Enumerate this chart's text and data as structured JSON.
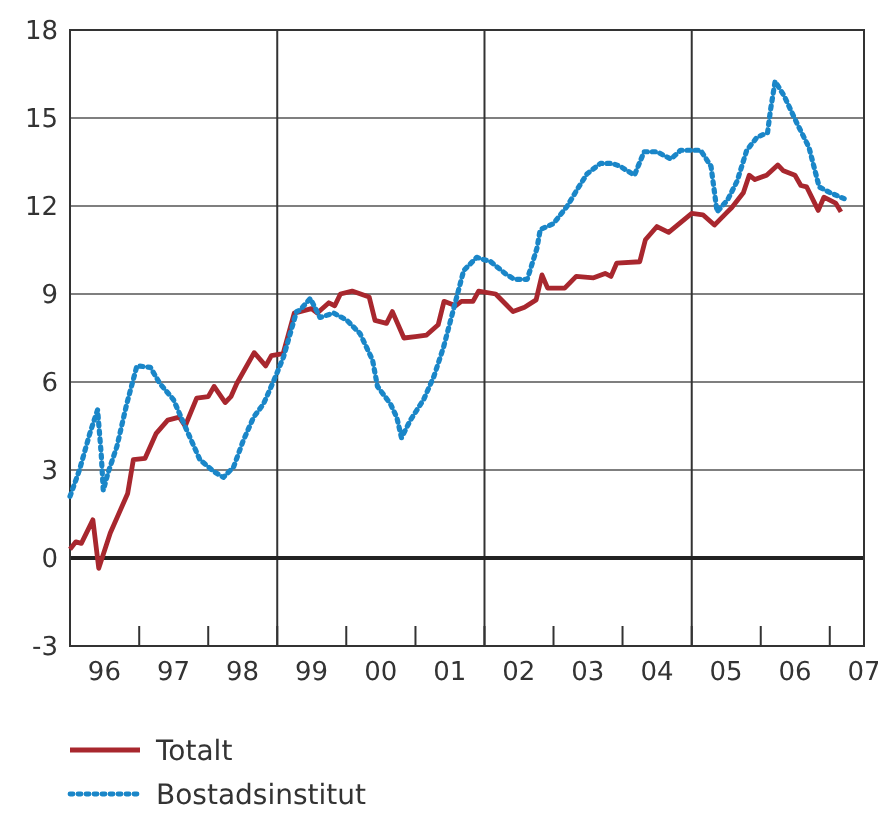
{
  "chart_data": {
    "type": "line",
    "xlim": [
      "1996-01-01",
      "2007-07-01"
    ],
    "ylim": [
      -3,
      18
    ],
    "yticks": [
      -3,
      0,
      3,
      6,
      9,
      12,
      15,
      18
    ],
    "xticks": [
      {
        "value": "1996-01-01",
        "label": null
      },
      {
        "value": "1996-07-01",
        "label": "96"
      },
      {
        "value": "1997-01-01",
        "label": null
      },
      {
        "value": "1997-07-01",
        "label": "97"
      },
      {
        "value": "1998-01-01",
        "label": null
      },
      {
        "value": "1998-07-01",
        "label": "98"
      },
      {
        "value": "1999-01-01",
        "label": null
      },
      {
        "value": "1999-07-01",
        "label": "99"
      },
      {
        "value": "2000-01-01",
        "label": null
      },
      {
        "value": "2000-07-01",
        "label": "00"
      },
      {
        "value": "2001-01-01",
        "label": null
      },
      {
        "value": "2001-07-01",
        "label": "01"
      },
      {
        "value": "2002-01-01",
        "label": null
      },
      {
        "value": "2002-07-01",
        "label": "02"
      },
      {
        "value": "2003-01-01",
        "label": null
      },
      {
        "value": "2003-07-01",
        "label": "03"
      },
      {
        "value": "2004-01-01",
        "label": null
      },
      {
        "value": "2004-07-01",
        "label": "04"
      },
      {
        "value": "2005-01-01",
        "label": null
      },
      {
        "value": "2005-07-01",
        "label": "05"
      },
      {
        "value": "2006-01-01",
        "label": null
      },
      {
        "value": "2006-07-01",
        "label": "06"
      },
      {
        "value": "2007-01-01",
        "label": null
      },
      {
        "value": "2007-07-01",
        "label": "07"
      }
    ],
    "grid": "y",
    "legend": "bottom",
    "marker": "none",
    "ref_lines": [
      {
        "axis": "x",
        "value": "1999-01-01",
        "color": "#333333"
      },
      {
        "axis": "x",
        "value": "2002-01-01",
        "color": "#333333"
      },
      {
        "axis": "x",
        "value": "2005-01-01",
        "color": "#333333"
      },
      {
        "axis": "y",
        "value": 0,
        "color": "#222222"
      }
    ],
    "series": [
      {
        "name": "Totalt",
        "color": "#a8272e",
        "line_style": "solid",
        "x": [
          "1996-01",
          "1996-02",
          "1996-03",
          "1996-05",
          "1996-06",
          "1996-08",
          "1996-11",
          "1996-12",
          "1997-02",
          "1997-04",
          "1997-06",
          "1997-08",
          "1997-09",
          "1997-11",
          "1998-01",
          "1998-02",
          "1998-04",
          "1998-05",
          "1998-06",
          "1998-09",
          "1998-11",
          "1998-12",
          "1999-02",
          "1999-04",
          "1999-07",
          "1999-08",
          "1999-10",
          "1999-11",
          "1999-12",
          "2000-02",
          "2000-05",
          "2000-06",
          "2000-08",
          "2000-09",
          "2000-11",
          "2001-01",
          "2001-03",
          "2001-05",
          "2001-06",
          "2001-08",
          "2001-09",
          "2001-11",
          "2001-12",
          "2002-03",
          "2002-06",
          "2002-08",
          "2002-10",
          "2002-11",
          "2002-12",
          "2003-03",
          "2003-05",
          "2003-08",
          "2003-10",
          "2003-11",
          "2003-12",
          "2004-04",
          "2004-05",
          "2004-07",
          "2004-09",
          "2005-01",
          "2005-03",
          "2005-05",
          "2005-07",
          "2005-08",
          "2005-10",
          "2005-11",
          "2005-12",
          "2006-02",
          "2006-04",
          "2006-05",
          "2006-07",
          "2006-08",
          "2006-09",
          "2006-11",
          "2006-12",
          "2007-02",
          "2007-03"
        ],
        "values": [
          0.3,
          0.55,
          0.5,
          1.3,
          -0.35,
          0.85,
          2.2,
          3.35,
          3.4,
          4.25,
          4.7,
          4.8,
          4.5,
          5.45,
          5.5,
          5.85,
          5.3,
          5.5,
          5.95,
          7.0,
          6.55,
          6.9,
          6.97,
          8.35,
          8.5,
          8.35,
          8.7,
          8.6,
          9.0,
          9.1,
          8.9,
          8.1,
          8.0,
          8.4,
          7.5,
          7.55,
          7.6,
          7.95,
          8.75,
          8.6,
          8.75,
          8.75,
          9.1,
          9.0,
          8.4,
          8.55,
          8.8,
          9.65,
          9.2,
          9.2,
          9.6,
          9.55,
          9.7,
          9.6,
          10.05,
          10.1,
          10.85,
          11.3,
          11.1,
          11.75,
          11.7,
          11.35,
          11.75,
          11.95,
          12.45,
          13.05,
          12.9,
          13.05,
          13.4,
          13.2,
          13.05,
          12.7,
          12.65,
          11.85,
          12.3,
          12.1,
          11.8
        ]
      },
      {
        "name": "Bostadsinstitut",
        "color": "#1a86c8",
        "line_style": "dotted",
        "x": [
          "1996-01-01",
          "1996-02-20",
          "1996-04-15",
          "1996-05-26",
          "1996-06-14",
          "1996-06-25",
          "1996-07-20",
          "1996-09-05",
          "1996-10-27",
          "1996-12-20",
          "1997-03-01",
          "1997-04-20",
          "1997-07-01",
          "1997-09-10",
          "1997-11-18",
          "1998-01-30",
          "1998-03-22",
          "1998-05-15",
          "1998-07-05",
          "1998-08-29",
          "1998-10-20",
          "1998-12-14",
          "1999-02-03",
          "1999-04-13",
          "1999-05-01",
          "1999-06-25",
          "1999-08-15",
          "1999-10-27",
          "2000-01-05",
          "2000-03-14",
          "2000-05-19",
          "2000-06-14",
          "2000-08-22",
          "2000-09-24",
          "2000-10-19",
          "2000-12-05",
          "2001-02-13",
          "2001-04-09",
          "2001-05-30",
          "2001-07-24",
          "2001-09-13",
          "2001-11-21",
          "2002-02-03",
          "2002-04-20",
          "2002-06-07",
          "2002-08-15",
          "2002-10-05",
          "2002-10-23",
          "2003-01-01",
          "2003-03-15",
          "2003-05-05",
          "2003-06-28",
          "2003-09-06",
          "2003-11-10",
          "2003-12-20",
          "2004-03-04",
          "2004-04-24",
          "2004-07-01",
          "2004-09-13",
          "2004-11-03",
          "2005-02-17",
          "2005-04-13",
          "2005-05-15",
          "2005-07-09",
          "2005-08-29",
          "2005-10-19",
          "2005-12-13",
          "2006-02-06",
          "2006-02-21",
          "2006-03-18",
          "2006-05-05",
          "2006-07-13",
          "2006-09-13",
          "2006-11-06",
          "2007-01-04",
          "2007-03-18"
        ],
        "values": [
          2.1,
          3.0,
          4.25,
          5.05,
          3.55,
          2.3,
          2.9,
          3.8,
          5.25,
          6.55,
          6.5,
          5.95,
          5.4,
          4.35,
          3.35,
          2.95,
          2.75,
          3.1,
          4.0,
          4.8,
          5.25,
          6.05,
          6.85,
          8.4,
          8.45,
          8.85,
          8.2,
          8.35,
          8.1,
          7.65,
          6.75,
          5.85,
          5.25,
          4.8,
          4.1,
          4.7,
          5.4,
          6.2,
          7.2,
          8.55,
          9.8,
          10.25,
          10.1,
          9.7,
          9.5,
          9.5,
          10.55,
          11.2,
          11.4,
          12.0,
          12.55,
          13.1,
          13.45,
          13.45,
          13.35,
          13.05,
          13.85,
          13.85,
          13.6,
          13.9,
          13.9,
          13.35,
          11.8,
          12.2,
          12.85,
          13.9,
          14.35,
          14.5,
          15.25,
          16.25,
          15.75,
          14.8,
          14.0,
          12.65,
          12.45,
          12.25
        ]
      }
    ]
  }
}
